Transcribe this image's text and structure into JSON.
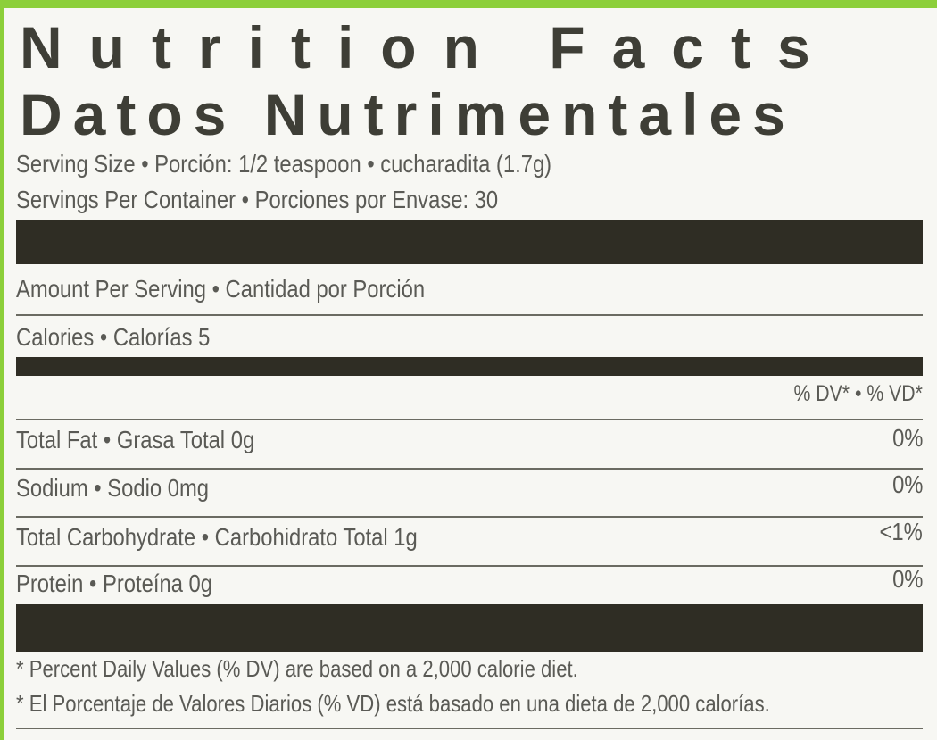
{
  "title_en": "Nutrition Facts",
  "title_es": "Datos Nutrimentales",
  "serving_size": "Serving Size • Porción: 1/2 teaspoon • cucharadita (1.7g)",
  "servings_per_container": "Servings Per Container • Porciones por Envase: 30",
  "amount_per_serving": "Amount Per Serving • Cantidad por Porción",
  "calories": "Calories • Calorías 5",
  "dv_header": "% DV* • % VD*",
  "nutrients": [
    {
      "label": "Total Fat • Grasa Total 0g",
      "dv": "0%"
    },
    {
      "label": "Sodium • Sodio 0mg",
      "dv": "0%"
    },
    {
      "label": "Total Carbohydrate • Carbohidrato Total 1g",
      "dv": "<1%"
    },
    {
      "label": "Protein • Proteína 0g",
      "dv": "0%"
    }
  ],
  "footnotes": [
    "* Percent Daily Values (% DV) are based on a 2,000 calorie diet.",
    "* El Porcentaje de Valores Diarios (% VD) está basado en una dieta de 2,000 calorías."
  ],
  "colors": {
    "label_border": "#8ccf3a",
    "bar": "#2f2d24",
    "text": "#5a5a55"
  }
}
